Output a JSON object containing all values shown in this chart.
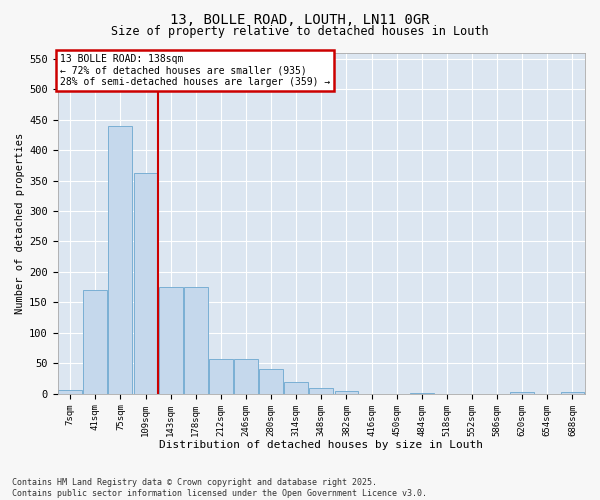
{
  "title_line1": "13, BOLLE ROAD, LOUTH, LN11 0GR",
  "title_line2": "Size of property relative to detached houses in Louth",
  "xlabel": "Distribution of detached houses by size in Louth",
  "ylabel": "Number of detached properties",
  "bar_color": "#c5d8ec",
  "bar_edge_color": "#7aafd4",
  "plot_bg_color": "#dce6f1",
  "fig_bg_color": "#f7f7f7",
  "grid_color": "#ffffff",
  "vline_color": "#cc0000",
  "vline_pos": 3.5,
  "annotation_text": "13 BOLLE ROAD: 138sqm\n← 72% of detached houses are smaller (935)\n28% of semi-detached houses are larger (359) →",
  "annotation_box_edgecolor": "#cc0000",
  "categories": [
    "7sqm",
    "41sqm",
    "75sqm",
    "109sqm",
    "143sqm",
    "178sqm",
    "212sqm",
    "246sqm",
    "280sqm",
    "314sqm",
    "348sqm",
    "382sqm",
    "416sqm",
    "450sqm",
    "484sqm",
    "518sqm",
    "552sqm",
    "586sqm",
    "620sqm",
    "654sqm",
    "688sqm"
  ],
  "values": [
    7,
    170,
    440,
    362,
    175,
    175,
    57,
    57,
    40,
    20,
    10,
    4,
    0,
    0,
    1,
    0,
    0,
    0,
    3,
    0,
    3
  ],
  "ylim": [
    0,
    560
  ],
  "yticks": [
    0,
    50,
    100,
    150,
    200,
    250,
    300,
    350,
    400,
    450,
    500,
    550
  ],
  "footnote": "Contains HM Land Registry data © Crown copyright and database right 2025.\nContains public sector information licensed under the Open Government Licence v3.0."
}
